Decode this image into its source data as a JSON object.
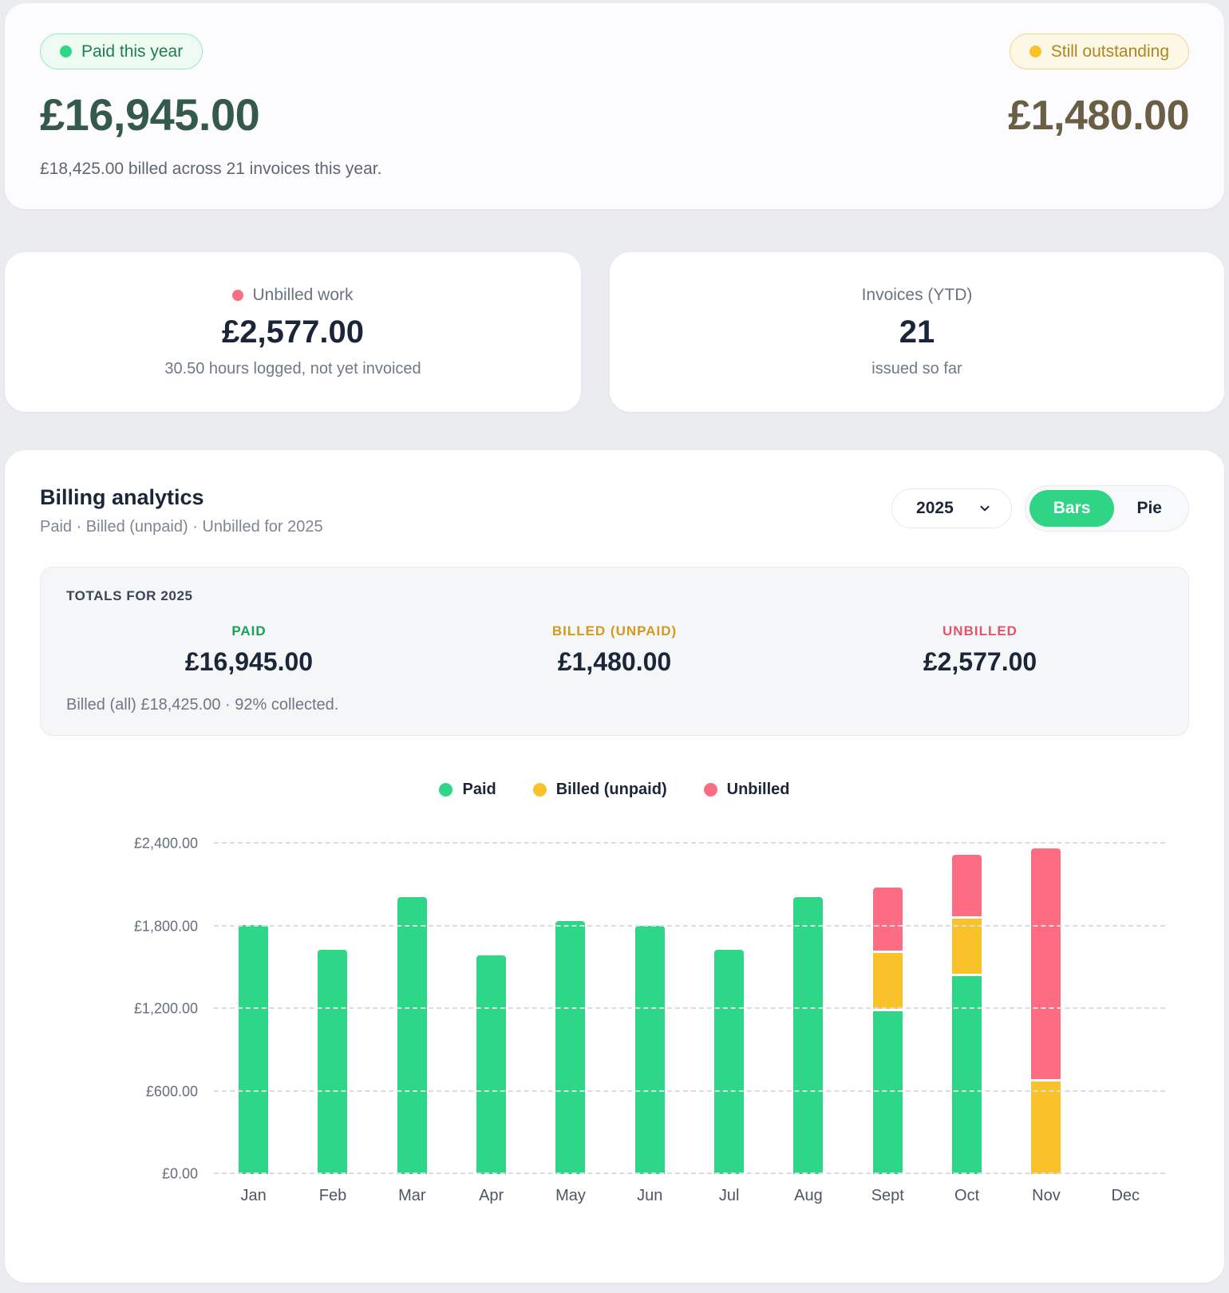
{
  "summary": {
    "paid_badge_label": "Paid this year",
    "paid_amount": "£16,945.00",
    "billed_note": "£18,425.00 billed across 21 invoices this year.",
    "outstanding_badge_label": "Still outstanding",
    "outstanding_amount": "£1,480.00"
  },
  "stat_cards": {
    "unbilled": {
      "label": "Unbilled work",
      "value": "£2,577.00",
      "subtitle": "30.50 hours logged, not yet invoiced"
    },
    "invoices": {
      "label": "Invoices (YTD)",
      "value": "21",
      "subtitle": "issued so far"
    }
  },
  "analytics": {
    "title": "Billing analytics",
    "subtitle": "Paid · Billed (unpaid) · Unbilled for 2025",
    "year_select": {
      "value": "2025"
    },
    "view_toggle": {
      "options": [
        "Bars",
        "Pie"
      ],
      "active": "Bars"
    },
    "totals": {
      "heading": "TOTALS FOR 2025",
      "columns": [
        {
          "label": "PAID",
          "value": "£16,945.00",
          "color": "#1aa158"
        },
        {
          "label": "BILLED (UNPAID)",
          "value": "£1,480.00",
          "color": "#d39a1e"
        },
        {
          "label": "UNBILLED",
          "value": "£2,577.00",
          "color": "#e0556e"
        }
      ],
      "footnote": "Billed (all) £18,425.00 · 92% collected."
    }
  },
  "chart_data": {
    "type": "bar",
    "stacked": true,
    "title": "Billing analytics 2025",
    "categories": [
      "Jan",
      "Feb",
      "Mar",
      "Apr",
      "May",
      "Jun",
      "Jul",
      "Aug",
      "Sept",
      "Oct",
      "Nov",
      "Dec"
    ],
    "series": [
      {
        "name": "Paid",
        "color": "#2ed687",
        "values": [
          1810,
          1630,
          2010,
          1590,
          1840,
          1805,
          1630,
          2010,
          1185,
          1435,
          0,
          0
        ]
      },
      {
        "name": "Billed (unpaid)",
        "color": "#f9c22b",
        "values": [
          0,
          0,
          0,
          0,
          0,
          0,
          0,
          0,
          405,
          405,
          670,
          0
        ]
      },
      {
        "name": "Unbilled",
        "color": "#fc6d83",
        "values": [
          0,
          0,
          0,
          0,
          0,
          0,
          0,
          0,
          455,
          445,
          1677,
          0
        ]
      }
    ],
    "ylim": [
      0,
      2400
    ],
    "yticks": [
      "£0.00",
      "£600.00",
      "£1,200.00",
      "£1,800.00",
      "£2,400.00"
    ],
    "xlabel": "",
    "ylabel": "",
    "legend_position": "top",
    "grid": "dashed-horizontal"
  },
  "colors": {
    "paid": "#2ed687",
    "billed_unpaid": "#f9c22b",
    "unbilled": "#fc6d83",
    "paid_amount_text": "#35594a",
    "outstanding_amount_text": "#6a5e44",
    "page_background": "#ebecef"
  }
}
